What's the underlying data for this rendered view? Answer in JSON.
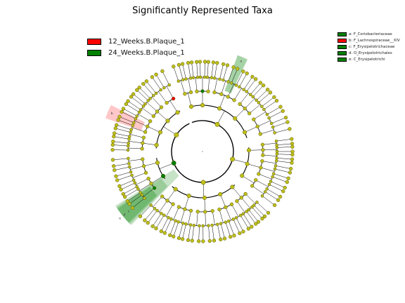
{
  "title": "Significantly Represented Taxa",
  "legend": [
    {
      "label": "12_Weeks.B.Plaque_1",
      "color": "#ff0000"
    },
    {
      "label": "24_Weeks.B.Plaque_1",
      "color": "#008000"
    }
  ],
  "taxa_legend": [
    {
      "label": "a: F_Coriobacteriaceae",
      "color": "#008000"
    },
    {
      "label": "b: F_Lachnospiraceae__XIV",
      "color": "#ff0000"
    },
    {
      "label": "c: F_Erysipelotrichaceae",
      "color": "#008000"
    },
    {
      "label": "d: O_Erysipelotrichales",
      "color": "#008000"
    },
    {
      "label": "e: C_Erysipelotrichi",
      "color": "#008000"
    }
  ],
  "sector_labels": [
    "a",
    "b",
    "c",
    "d",
    "e"
  ],
  "colors": {
    "node_default": "#bfbf1a",
    "node_border": "#555500",
    "group_12_weeks": "#ff0000",
    "group_24_weeks": "#008000"
  }
}
